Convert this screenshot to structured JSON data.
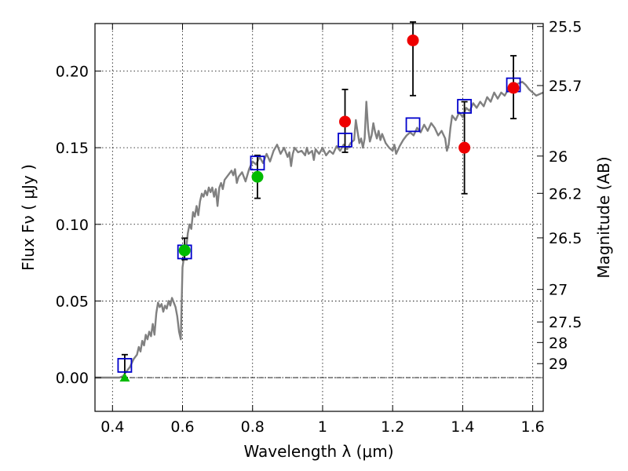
{
  "chart_data": {
    "type": "scatter",
    "xlabel": "Wavelength  λ (μm)",
    "ylabel_left": "Flux  Fν  ( μJy )",
    "ylabel_right": "Magnitude (AB)",
    "xlim": [
      0.35,
      1.63
    ],
    "ylim": [
      -0.022,
      0.231
    ],
    "x_ticks": [
      0.4,
      0.6,
      0.8,
      1.0,
      1.2,
      1.4,
      1.6
    ],
    "x_tick_labels": [
      "0.4",
      "0.6",
      "0.8",
      "1",
      "1.2",
      "1.4",
      "1.6"
    ],
    "y_ticks": [
      0.0,
      0.05,
      0.1,
      0.15,
      0.2
    ],
    "y_tick_labels": [
      "0.00",
      "0.05",
      "0.10",
      "0.15",
      "0.20"
    ],
    "right_ticks": [
      {
        "label": "25.5",
        "mag": 25.5
      },
      {
        "label": "25.7",
        "mag": 25.7
      },
      {
        "label": "26",
        "mag": 26.0
      },
      {
        "label": "26.2",
        "mag": 26.2
      },
      {
        "label": "26.5",
        "mag": 26.5
      },
      {
        "label": "27",
        "mag": 27.0
      },
      {
        "label": "27.5",
        "mag": 27.5
      },
      {
        "label": "28",
        "mag": 28.0
      },
      {
        "label": "29",
        "mag": 29.0
      }
    ],
    "grid": true,
    "zero_line": true,
    "model_spectrum": {
      "color": "#808080",
      "points": [
        [
          0.35,
          0.0
        ],
        [
          0.42,
          0.0
        ],
        [
          0.43,
          0.001
        ],
        [
          0.44,
          0.004
        ],
        [
          0.45,
          0.007
        ],
        [
          0.46,
          0.012
        ],
        [
          0.47,
          0.015
        ],
        [
          0.475,
          0.02
        ],
        [
          0.48,
          0.017
        ],
        [
          0.485,
          0.024
        ],
        [
          0.49,
          0.021
        ],
        [
          0.495,
          0.028
        ],
        [
          0.5,
          0.025
        ],
        [
          0.505,
          0.03
        ],
        [
          0.51,
          0.027
        ],
        [
          0.515,
          0.035
        ],
        [
          0.52,
          0.028
        ],
        [
          0.525,
          0.042
        ],
        [
          0.53,
          0.049
        ],
        [
          0.535,
          0.046
        ],
        [
          0.54,
          0.048
        ],
        [
          0.545,
          0.043
        ],
        [
          0.55,
          0.047
        ],
        [
          0.555,
          0.045
        ],
        [
          0.56,
          0.05
        ],
        [
          0.565,
          0.047
        ],
        [
          0.57,
          0.052
        ],
        [
          0.575,
          0.049
        ],
        [
          0.58,
          0.046
        ],
        [
          0.585,
          0.04
        ],
        [
          0.59,
          0.03
        ],
        [
          0.595,
          0.025
        ],
        [
          0.6,
          0.072
        ],
        [
          0.605,
          0.08
        ],
        [
          0.61,
          0.083
        ],
        [
          0.615,
          0.094
        ],
        [
          0.62,
          0.1
        ],
        [
          0.625,
          0.097
        ],
        [
          0.63,
          0.108
        ],
        [
          0.635,
          0.105
        ],
        [
          0.64,
          0.112
        ],
        [
          0.645,
          0.106
        ],
        [
          0.65,
          0.115
        ],
        [
          0.655,
          0.12
        ],
        [
          0.66,
          0.118
        ],
        [
          0.665,
          0.122
        ],
        [
          0.67,
          0.119
        ],
        [
          0.675,
          0.124
        ],
        [
          0.68,
          0.121
        ],
        [
          0.685,
          0.124
        ],
        [
          0.69,
          0.118
        ],
        [
          0.695,
          0.123
        ],
        [
          0.7,
          0.112
        ],
        [
          0.705,
          0.124
        ],
        [
          0.71,
          0.127
        ],
        [
          0.715,
          0.123
        ],
        [
          0.72,
          0.129
        ],
        [
          0.73,
          0.132
        ],
        [
          0.74,
          0.135
        ],
        [
          0.745,
          0.132
        ],
        [
          0.75,
          0.136
        ],
        [
          0.755,
          0.127
        ],
        [
          0.76,
          0.131
        ],
        [
          0.77,
          0.134
        ],
        [
          0.78,
          0.128
        ],
        [
          0.79,
          0.136
        ],
        [
          0.8,
          0.141
        ],
        [
          0.81,
          0.139
        ],
        [
          0.82,
          0.144
        ],
        [
          0.83,
          0.14
        ],
        [
          0.84,
          0.146
        ],
        [
          0.85,
          0.141
        ],
        [
          0.86,
          0.148
        ],
        [
          0.87,
          0.152
        ],
        [
          0.88,
          0.146
        ],
        [
          0.89,
          0.15
        ],
        [
          0.9,
          0.144
        ],
        [
          0.905,
          0.147
        ],
        [
          0.91,
          0.138
        ],
        [
          0.915,
          0.146
        ],
        [
          0.92,
          0.15
        ],
        [
          0.93,
          0.147
        ],
        [
          0.94,
          0.148
        ],
        [
          0.95,
          0.145
        ],
        [
          0.955,
          0.15
        ],
        [
          0.96,
          0.146
        ],
        [
          0.97,
          0.148
        ],
        [
          0.975,
          0.142
        ],
        [
          0.98,
          0.149
        ],
        [
          0.99,
          0.146
        ],
        [
          1.0,
          0.15
        ],
        [
          1.01,
          0.145
        ],
        [
          1.02,
          0.148
        ],
        [
          1.03,
          0.146
        ],
        [
          1.04,
          0.151
        ],
        [
          1.05,
          0.148
        ],
        [
          1.06,
          0.152
        ],
        [
          1.07,
          0.149
        ],
        [
          1.08,
          0.153
        ],
        [
          1.09,
          0.155
        ],
        [
          1.095,
          0.168
        ],
        [
          1.1,
          0.16
        ],
        [
          1.105,
          0.153
        ],
        [
          1.11,
          0.156
        ],
        [
          1.115,
          0.15
        ],
        [
          1.12,
          0.156
        ],
        [
          1.125,
          0.18
        ],
        [
          1.13,
          0.162
        ],
        [
          1.135,
          0.154
        ],
        [
          1.14,
          0.158
        ],
        [
          1.145,
          0.166
        ],
        [
          1.15,
          0.16
        ],
        [
          1.155,
          0.156
        ],
        [
          1.16,
          0.161
        ],
        [
          1.165,
          0.155
        ],
        [
          1.17,
          0.159
        ],
        [
          1.18,
          0.153
        ],
        [
          1.19,
          0.15
        ],
        [
          1.2,
          0.148
        ],
        [
          1.205,
          0.152
        ],
        [
          1.21,
          0.146
        ],
        [
          1.22,
          0.151
        ],
        [
          1.23,
          0.155
        ],
        [
          1.24,
          0.158
        ],
        [
          1.25,
          0.16
        ],
        [
          1.26,
          0.158
        ],
        [
          1.27,
          0.163
        ],
        [
          1.28,
          0.16
        ],
        [
          1.29,
          0.165
        ],
        [
          1.3,
          0.161
        ],
        [
          1.31,
          0.166
        ],
        [
          1.32,
          0.163
        ],
        [
          1.33,
          0.158
        ],
        [
          1.34,
          0.161
        ],
        [
          1.35,
          0.156
        ],
        [
          1.355,
          0.148
        ],
        [
          1.36,
          0.152
        ],
        [
          1.365,
          0.163
        ],
        [
          1.37,
          0.171
        ],
        [
          1.38,
          0.168
        ],
        [
          1.39,
          0.173
        ],
        [
          1.4,
          0.17
        ],
        [
          1.41,
          0.176
        ],
        [
          1.42,
          0.174
        ],
        [
          1.43,
          0.179
        ],
        [
          1.44,
          0.176
        ],
        [
          1.45,
          0.18
        ],
        [
          1.46,
          0.177
        ],
        [
          1.47,
          0.183
        ],
        [
          1.48,
          0.18
        ],
        [
          1.49,
          0.186
        ],
        [
          1.5,
          0.182
        ],
        [
          1.51,
          0.186
        ],
        [
          1.52,
          0.184
        ],
        [
          1.53,
          0.188
        ],
        [
          1.54,
          0.19
        ],
        [
          1.55,
          0.191
        ],
        [
          1.56,
          0.192
        ],
        [
          1.57,
          0.193
        ],
        [
          1.58,
          0.191
        ],
        [
          1.59,
          0.188
        ],
        [
          1.6,
          0.186
        ],
        [
          1.61,
          0.184
        ],
        [
          1.62,
          0.185
        ],
        [
          1.63,
          0.186
        ]
      ]
    },
    "model_photometry": {
      "marker": "open-square",
      "color": "#0000cc",
      "points": [
        {
          "x": 0.435,
          "y": 0.008
        },
        {
          "x": 0.606,
          "y": 0.082
        },
        {
          "x": 0.814,
          "y": 0.14
        },
        {
          "x": 1.064,
          "y": 0.155
        },
        {
          "x": 1.258,
          "y": 0.165
        },
        {
          "x": 1.405,
          "y": 0.177
        },
        {
          "x": 1.545,
          "y": 0.191
        }
      ]
    },
    "observed": [
      {
        "x": 0.435,
        "y": 0.008,
        "yerr_low": 0.008,
        "yerr_high": 0.007,
        "marker": "none",
        "color": "#000000"
      },
      {
        "x": 0.606,
        "y": 0.083,
        "yerr_low": 0.006,
        "yerr_high": 0.008,
        "marker": "circle",
        "color": "#00bb00"
      },
      {
        "x": 0.814,
        "y": 0.131,
        "yerr_low": 0.014,
        "yerr_high": 0.014,
        "marker": "circle",
        "color": "#00bb00"
      },
      {
        "x": 1.064,
        "y": 0.167,
        "yerr_low": 0.02,
        "yerr_high": 0.021,
        "marker": "circle",
        "color": "#ee0000"
      },
      {
        "x": 1.258,
        "y": 0.22,
        "yerr_low": 0.036,
        "yerr_high": 0.012,
        "marker": "circle",
        "color": "#ee0000"
      },
      {
        "x": 1.405,
        "y": 0.15,
        "yerr_low": 0.03,
        "yerr_high": 0.03,
        "marker": "circle",
        "color": "#ee0000"
      },
      {
        "x": 1.545,
        "y": 0.189,
        "yerr_low": 0.02,
        "yerr_high": 0.021,
        "marker": "circle",
        "color": "#ee0000"
      }
    ],
    "upper_limit": {
      "x": 0.435,
      "y": 0.0,
      "marker": "triangle-up",
      "color": "#00bb00"
    }
  }
}
